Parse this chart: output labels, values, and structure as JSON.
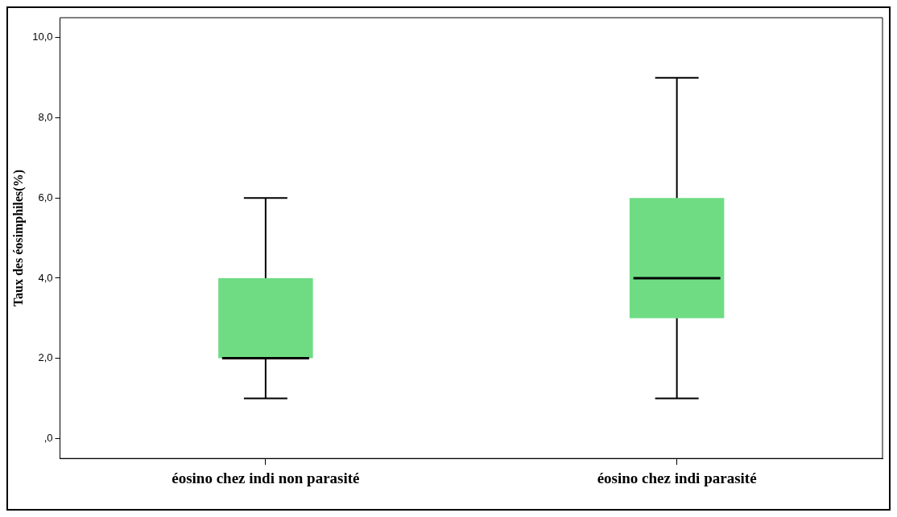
{
  "chart_data": {
    "type": "box",
    "ylabel": "Taux des éosimphiles(%)",
    "categories": [
      "éosino chez indi non parasité",
      "éosino chez indi parasité"
    ],
    "boxes": [
      {
        "low": 1,
        "q1": 2,
        "median": 2,
        "q3": 4,
        "high": 6
      },
      {
        "low": 1,
        "q1": 3,
        "median": 4,
        "q3": 6,
        "high": 9
      }
    ],
    "color": "#6fdc84",
    "ylim": [
      -0.5,
      10.5
    ],
    "yticks": [
      {
        "value": 0,
        "label": ",0"
      },
      {
        "value": 2,
        "label": "2,0"
      },
      {
        "value": 4,
        "label": "4,0"
      },
      {
        "value": 6,
        "label": "6,0"
      },
      {
        "value": 8,
        "label": "8,0"
      },
      {
        "value": 10,
        "label": "10,0"
      }
    ],
    "grid": false,
    "legend": false
  }
}
